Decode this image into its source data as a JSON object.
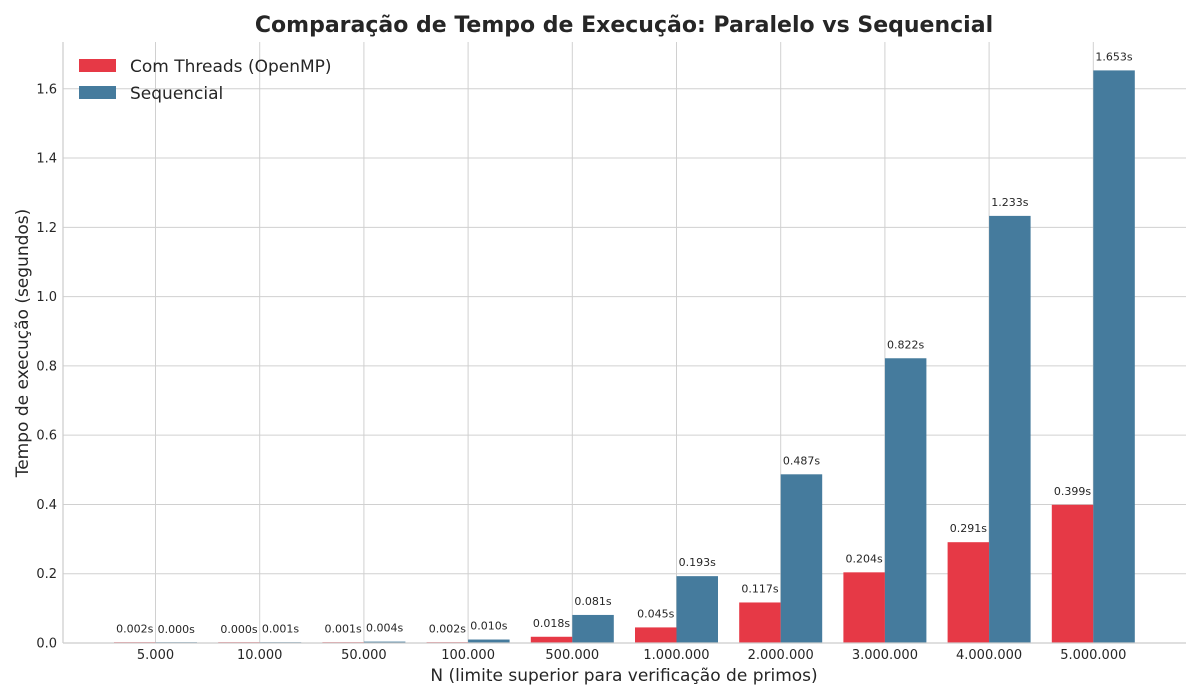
{
  "chart_data": {
    "type": "bar",
    "title": "Comparação de Tempo de Execução: Paralelo vs Sequencial",
    "xlabel": "N (limite superior para verificação de primos)",
    "ylabel": "Tempo de execução (segundos)",
    "ylim": [
      0,
      1.735
    ],
    "yticks": [
      "0.0",
      "0.2",
      "0.4",
      "0.6",
      "0.8",
      "1.0",
      "1.2",
      "1.4",
      "1.6"
    ],
    "grid": true,
    "legend_position": "top-left",
    "categories": [
      "5.000",
      "10.000",
      "50.000",
      "100.000",
      "500.000",
      "1.000.000",
      "2.000.000",
      "3.000.000",
      "4.000.000",
      "5.000.000"
    ],
    "series": [
      {
        "name": "Com Threads (OpenMP)",
        "color": "#e63946",
        "values": [
          0.002,
          0.0,
          0.001,
          0.002,
          0.018,
          0.045,
          0.117,
          0.204,
          0.291,
          0.399
        ],
        "labels": [
          "0.002s",
          "0.000s",
          "0.001s",
          "0.002s",
          "0.018s",
          "0.045s",
          "0.117s",
          "0.204s",
          "0.291s",
          "0.399s"
        ]
      },
      {
        "name": "Sequencial",
        "color": "#457b9d",
        "values": [
          0.0,
          0.001,
          0.004,
          0.01,
          0.081,
          0.193,
          0.487,
          0.822,
          1.233,
          1.653
        ],
        "labels": [
          "0.000s",
          "0.001s",
          "0.004s",
          "0.010s",
          "0.081s",
          "0.193s",
          "0.487s",
          "0.822s",
          "1.233s",
          "1.653s"
        ]
      }
    ]
  }
}
